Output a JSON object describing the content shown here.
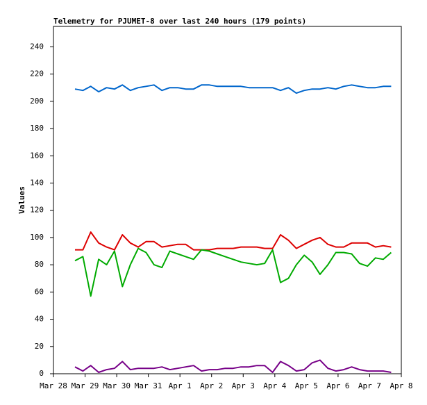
{
  "chart_data": {
    "type": "line",
    "title": "Telemetry for PJUMET-8 over last 240 hours (179 points)",
    "y_label": "Values",
    "x": [
      0.68,
      0.93,
      1.18,
      1.43,
      1.68,
      1.93,
      2.18,
      2.43,
      2.68,
      2.93,
      3.18,
      3.43,
      3.68,
      3.93,
      4.18,
      4.43,
      4.68,
      4.93,
      5.18,
      5.43,
      5.68,
      5.93,
      6.18,
      6.43,
      6.68,
      6.93,
      7.18,
      7.43,
      7.68,
      7.93,
      8.18,
      8.43,
      8.68,
      8.93,
      9.18,
      9.43,
      9.68,
      9.93,
      10.18,
      10.43,
      10.68
    ],
    "series": [
      {
        "color": "#0066cc",
        "values": [
          209,
          208,
          211,
          207,
          210,
          209,
          212,
          208,
          210,
          211,
          212,
          208,
          210,
          210,
          209,
          209,
          212,
          212,
          211,
          211,
          211,
          211,
          210,
          210,
          210,
          210,
          208,
          210,
          206,
          208,
          209,
          209,
          210,
          209,
          211,
          212,
          211,
          210,
          210,
          211,
          211
        ]
      },
      {
        "color": "#dd0000",
        "values": [
          91,
          91,
          104,
          96,
          93,
          91,
          102,
          96,
          93,
          97,
          97,
          93,
          94,
          95,
          95,
          91,
          91,
          91,
          92,
          92,
          92,
          93,
          93,
          93,
          92,
          92,
          102,
          98,
          92,
          95,
          98,
          100,
          95,
          93,
          93,
          96,
          96,
          96,
          93,
          94,
          93
        ]
      },
      {
        "color": "#00aa00",
        "values": [
          83,
          86,
          57,
          84,
          80,
          90,
          64,
          80,
          92,
          89,
          80,
          78,
          90,
          88,
          86,
          84,
          91,
          90,
          88,
          86,
          84,
          82,
          81,
          80,
          81,
          91,
          67,
          70,
          80,
          87,
          82,
          73,
          80,
          89,
          89,
          88,
          81,
          79,
          85,
          84,
          89
        ]
      },
      {
        "color": "#770088",
        "values": [
          5,
          2,
          6,
          1,
          3,
          4,
          9,
          3,
          4,
          4,
          4,
          5,
          3,
          4,
          5,
          6,
          2,
          3,
          3,
          4,
          4,
          5,
          5,
          6,
          6,
          1,
          9,
          6,
          2,
          3,
          8,
          10,
          4,
          2,
          3,
          5,
          3,
          2,
          2,
          2,
          1
        ]
      }
    ],
    "xlim": [
      0,
      11
    ],
    "xticks": [
      {
        "value": 0,
        "label": "Mar 28"
      },
      {
        "value": 1,
        "label": "Mar 29"
      },
      {
        "value": 2,
        "label": "Mar 30"
      },
      {
        "value": 3,
        "label": "Mar 31"
      },
      {
        "value": 4,
        "label": "Apr 1"
      },
      {
        "value": 5,
        "label": "Apr 2"
      },
      {
        "value": 6,
        "label": "Apr 3"
      },
      {
        "value": 7,
        "label": "Apr 4"
      },
      {
        "value": 8,
        "label": "Apr 5"
      },
      {
        "value": 9,
        "label": "Apr 6"
      },
      {
        "value": 10,
        "label": "Apr 7"
      },
      {
        "value": 11,
        "label": "Apr 8"
      }
    ],
    "ylim": [
      0,
      255
    ],
    "yticks": [
      0,
      20,
      40,
      60,
      80,
      100,
      120,
      140,
      160,
      180,
      200,
      220,
      240
    ],
    "grid": false
  }
}
